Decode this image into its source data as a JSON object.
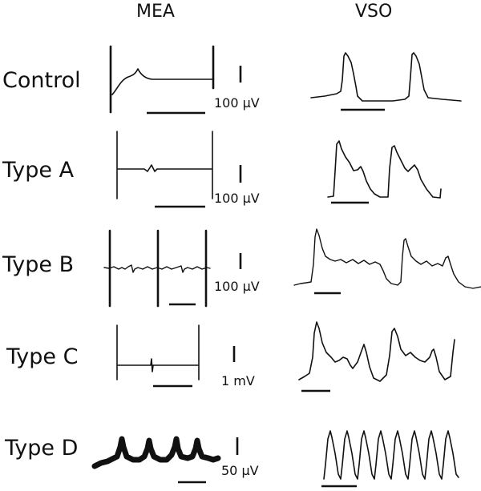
{
  "columns": {
    "mea": "MEA",
    "vso": "VSO"
  },
  "rows": [
    {
      "label": "Control",
      "scale": "100 μV"
    },
    {
      "label": "Type A",
      "scale": "100 μV"
    },
    {
      "label": "Type B",
      "scale": "100 μV"
    },
    {
      "label": "Type C",
      "scale": "1 mV"
    },
    {
      "label": "Type D",
      "scale": "50 μV"
    }
  ]
}
